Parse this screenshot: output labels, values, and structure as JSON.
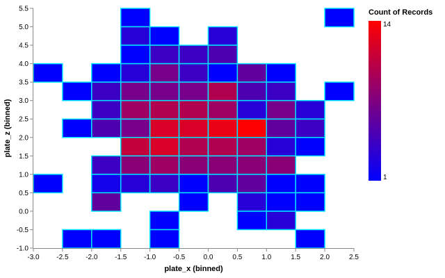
{
  "chart_data": {
    "type": "heatmap",
    "xlabel": "plate_x (binned)",
    "ylabel": "plate_z (binned)",
    "xlim": [
      -3.0,
      2.5
    ],
    "ylim": [
      -1.0,
      5.5
    ],
    "bin_step": 0.5,
    "x_ticks": [
      "-3.0",
      "-2.5",
      "-2.0",
      "-1.5",
      "-1.0",
      "-0.5",
      "0.0",
      "0.5",
      "1.0",
      "1.5",
      "2.0",
      "2.5"
    ],
    "y_ticks": [
      "-1.0",
      "-0.5",
      "0.0",
      "0.5",
      "1.0",
      "1.5",
      "2.0",
      "2.5",
      "3.0",
      "3.5",
      "4.0",
      "4.5",
      "5.0",
      "5.5"
    ],
    "legend": {
      "title": "Count of Records",
      "min": 1,
      "max": 14,
      "min_label": "1",
      "max_label": "14",
      "min_color": "#0000ff",
      "max_color": "#ff0000"
    },
    "cell_stroke_color": "#00e5ff",
    "cells": [
      {
        "x": -1.5,
        "z": 5.0,
        "count": 1
      },
      {
        "x": 2.0,
        "z": 5.0,
        "count": 1
      },
      {
        "x": -1.5,
        "z": 4.5,
        "count": 3
      },
      {
        "x": -1.0,
        "z": 4.5,
        "count": 1
      },
      {
        "x": 0.0,
        "z": 4.5,
        "count": 3
      },
      {
        "x": -1.5,
        "z": 4.0,
        "count": 1
      },
      {
        "x": -1.0,
        "z": 4.0,
        "count": 4
      },
      {
        "x": -0.5,
        "z": 4.0,
        "count": 4
      },
      {
        "x": 0.0,
        "z": 4.0,
        "count": 5
      },
      {
        "x": -3.0,
        "z": 3.5,
        "count": 1
      },
      {
        "x": -2.0,
        "z": 3.5,
        "count": 1
      },
      {
        "x": -1.5,
        "z": 3.5,
        "count": 3
      },
      {
        "x": -1.0,
        "z": 3.5,
        "count": 7
      },
      {
        "x": -0.5,
        "z": 3.5,
        "count": 4
      },
      {
        "x": 0.0,
        "z": 3.5,
        "count": 1
      },
      {
        "x": 0.5,
        "z": 3.5,
        "count": 6
      },
      {
        "x": 1.0,
        "z": 3.5,
        "count": 1
      },
      {
        "x": -2.5,
        "z": 3.0,
        "count": 1
      },
      {
        "x": -2.0,
        "z": 3.0,
        "count": 4
      },
      {
        "x": -1.5,
        "z": 3.0,
        "count": 7
      },
      {
        "x": -1.0,
        "z": 3.0,
        "count": 7
      },
      {
        "x": -0.5,
        "z": 3.0,
        "count": 7
      },
      {
        "x": 0.0,
        "z": 3.0,
        "count": 10
      },
      {
        "x": 0.5,
        "z": 3.0,
        "count": 5
      },
      {
        "x": 1.0,
        "z": 3.0,
        "count": 4
      },
      {
        "x": 2.0,
        "z": 3.0,
        "count": 1
      },
      {
        "x": -2.0,
        "z": 2.5,
        "count": 4
      },
      {
        "x": -1.5,
        "z": 2.5,
        "count": 9
      },
      {
        "x": -1.0,
        "z": 2.5,
        "count": 10
      },
      {
        "x": -0.5,
        "z": 2.5,
        "count": 10
      },
      {
        "x": 0.0,
        "z": 2.5,
        "count": 9
      },
      {
        "x": 0.5,
        "z": 2.5,
        "count": 3
      },
      {
        "x": 1.0,
        "z": 2.5,
        "count": 7
      },
      {
        "x": 1.5,
        "z": 2.5,
        "count": 3
      },
      {
        "x": -2.5,
        "z": 2.0,
        "count": 1
      },
      {
        "x": -2.0,
        "z": 2.0,
        "count": 5
      },
      {
        "x": -1.5,
        "z": 2.0,
        "count": 7
      },
      {
        "x": -1.0,
        "z": 2.0,
        "count": 12
      },
      {
        "x": -0.5,
        "z": 2.0,
        "count": 12
      },
      {
        "x": 0.0,
        "z": 2.0,
        "count": 13
      },
      {
        "x": 0.5,
        "z": 2.0,
        "count": 14
      },
      {
        "x": 1.0,
        "z": 2.0,
        "count": 6
      },
      {
        "x": 1.5,
        "z": 2.0,
        "count": 4
      },
      {
        "x": -1.5,
        "z": 1.5,
        "count": 11
      },
      {
        "x": -1.0,
        "z": 1.5,
        "count": 12
      },
      {
        "x": -0.5,
        "z": 1.5,
        "count": 10
      },
      {
        "x": 0.0,
        "z": 1.5,
        "count": 10
      },
      {
        "x": 0.5,
        "z": 1.5,
        "count": 9
      },
      {
        "x": 1.0,
        "z": 1.5,
        "count": 3
      },
      {
        "x": 1.5,
        "z": 1.5,
        "count": 1
      },
      {
        "x": -2.0,
        "z": 1.0,
        "count": 4
      },
      {
        "x": -1.5,
        "z": 1.0,
        "count": 8
      },
      {
        "x": -1.0,
        "z": 1.0,
        "count": 9
      },
      {
        "x": -0.5,
        "z": 1.0,
        "count": 8
      },
      {
        "x": 0.0,
        "z": 1.0,
        "count": 8
      },
      {
        "x": 0.5,
        "z": 1.0,
        "count": 8
      },
      {
        "x": 1.0,
        "z": 1.0,
        "count": 8
      },
      {
        "x": -3.0,
        "z": 0.5,
        "count": 1
      },
      {
        "x": -2.0,
        "z": 0.5,
        "count": 2
      },
      {
        "x": -1.5,
        "z": 0.5,
        "count": 3
      },
      {
        "x": -1.0,
        "z": 0.5,
        "count": 4
      },
      {
        "x": -0.5,
        "z": 0.5,
        "count": 1
      },
      {
        "x": 0.0,
        "z": 0.5,
        "count": 5
      },
      {
        "x": 0.5,
        "z": 0.5,
        "count": 6
      },
      {
        "x": 1.0,
        "z": 0.5,
        "count": 1
      },
      {
        "x": 1.5,
        "z": 0.5,
        "count": 1
      },
      {
        "x": -2.0,
        "z": 0.0,
        "count": 6
      },
      {
        "x": -0.5,
        "z": 0.0,
        "count": 1
      },
      {
        "x": 0.5,
        "z": 0.0,
        "count": 3
      },
      {
        "x": 1.0,
        "z": 0.0,
        "count": 1
      },
      {
        "x": 1.5,
        "z": 0.0,
        "count": 1
      },
      {
        "x": -1.0,
        "z": -0.5,
        "count": 1
      },
      {
        "x": 0.5,
        "z": -0.5,
        "count": 1
      },
      {
        "x": 1.0,
        "z": -0.5,
        "count": 3
      },
      {
        "x": -2.5,
        "z": -1.0,
        "count": 1
      },
      {
        "x": -2.0,
        "z": -1.0,
        "count": 1
      },
      {
        "x": -1.0,
        "z": -1.0,
        "count": 1
      },
      {
        "x": 1.5,
        "z": -1.0,
        "count": 1
      }
    ]
  }
}
